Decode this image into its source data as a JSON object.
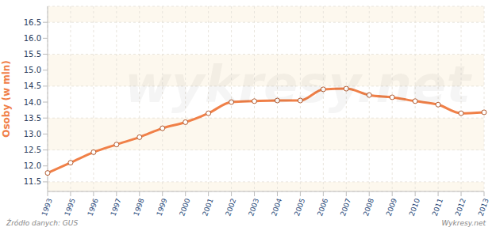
{
  "chart_data": {
    "type": "line",
    "y_label": "Osoby (w mln)",
    "source": "Źródło danych: GUS",
    "credit": "Wykresy.net",
    "watermark": "wykresy.net",
    "categories": [
      "1993",
      "1995",
      "1996",
      "1997",
      "1998",
      "1999",
      "2000",
      "2001",
      "2002",
      "2003",
      "2004",
      "2005",
      "2006",
      "2007",
      "2008",
      "2009",
      "2010",
      "2011",
      "2012",
      "2013"
    ],
    "values": [
      11.78,
      12.1,
      12.43,
      12.67,
      12.9,
      13.18,
      13.37,
      13.65,
      14.0,
      14.03,
      14.05,
      14.05,
      14.4,
      14.42,
      14.22,
      14.15,
      14.03,
      13.92,
      13.65,
      13.68
    ],
    "color": "#f08048",
    "marker": "circle",
    "grid": true,
    "ylim": [
      11.2,
      17.0
    ],
    "yticks": [
      11.5,
      {
        "value": 12,
        "label": "12.0"
      },
      12.5,
      {
        "value": 13,
        "label": "13.0"
      },
      13.5,
      {
        "value": 14,
        "label": "14.0"
      },
      14.5,
      {
        "value": 15,
        "label": "15.0"
      },
      15.5,
      {
        "value": 16,
        "label": "16.0"
      },
      16.5
    ]
  }
}
